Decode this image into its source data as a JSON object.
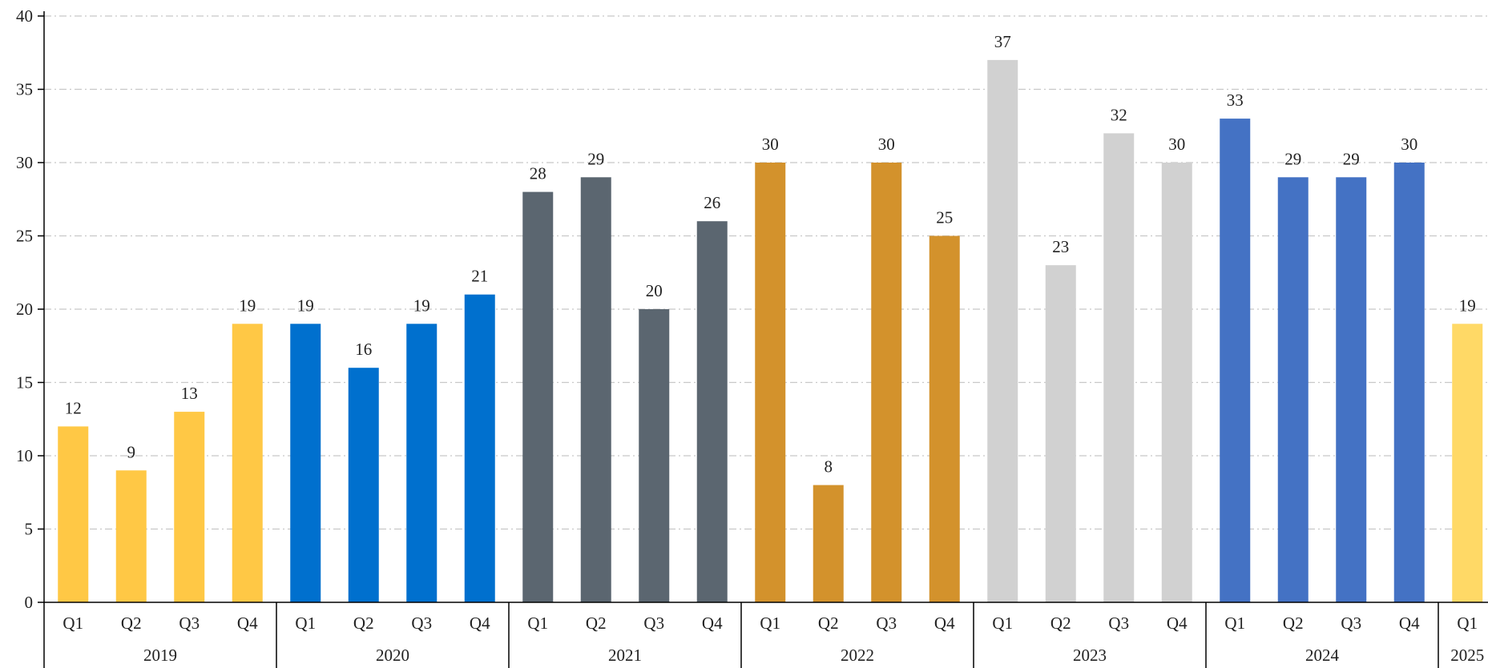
{
  "chart_data": {
    "type": "bar",
    "title": "",
    "xlabel": "",
    "ylabel": "",
    "ylim": [
      0,
      40
    ],
    "yticks": [
      0,
      5,
      10,
      15,
      20,
      25,
      30,
      35,
      40
    ],
    "grid": true,
    "legend": "none",
    "groups": [
      {
        "year": "2019",
        "color": "#FFC845",
        "bars": [
          {
            "q": "Q1",
            "value": 12
          },
          {
            "q": "Q2",
            "value": 9
          },
          {
            "q": "Q3",
            "value": 13
          },
          {
            "q": "Q4",
            "value": 19
          }
        ]
      },
      {
        "year": "2020",
        "color": "#0070CE",
        "bars": [
          {
            "q": "Q1",
            "value": 19
          },
          {
            "q": "Q2",
            "value": 16
          },
          {
            "q": "Q3",
            "value": 19
          },
          {
            "q": "Q4",
            "value": 21
          }
        ]
      },
      {
        "year": "2021",
        "color": "#5B6670",
        "bars": [
          {
            "q": "Q1",
            "value": 28
          },
          {
            "q": "Q2",
            "value": 29
          },
          {
            "q": "Q3",
            "value": 20
          },
          {
            "q": "Q4",
            "value": 26
          }
        ]
      },
      {
        "year": "2022",
        "color": "#D3922C",
        "bars": [
          {
            "q": "Q1",
            "value": 30
          },
          {
            "q": "Q2",
            "value": 8
          },
          {
            "q": "Q3",
            "value": 30
          },
          {
            "q": "Q4",
            "value": 25
          }
        ]
      },
      {
        "year": "2023",
        "color": "#D1D1D1",
        "bars": [
          {
            "q": "Q1",
            "value": 37
          },
          {
            "q": "Q2",
            "value": 23
          },
          {
            "q": "Q3",
            "value": 32
          },
          {
            "q": "Q4",
            "value": 30
          }
        ]
      },
      {
        "year": "2024",
        "color": "#4472C4",
        "bars": [
          {
            "q": "Q1",
            "value": 33
          },
          {
            "q": "Q2",
            "value": 29
          },
          {
            "q": "Q3",
            "value": 29
          },
          {
            "q": "Q4",
            "value": 30
          }
        ]
      },
      {
        "year": "2025",
        "color": "#FFD966",
        "bars": [
          {
            "q": "Q1",
            "value": 19
          }
        ]
      }
    ]
  }
}
